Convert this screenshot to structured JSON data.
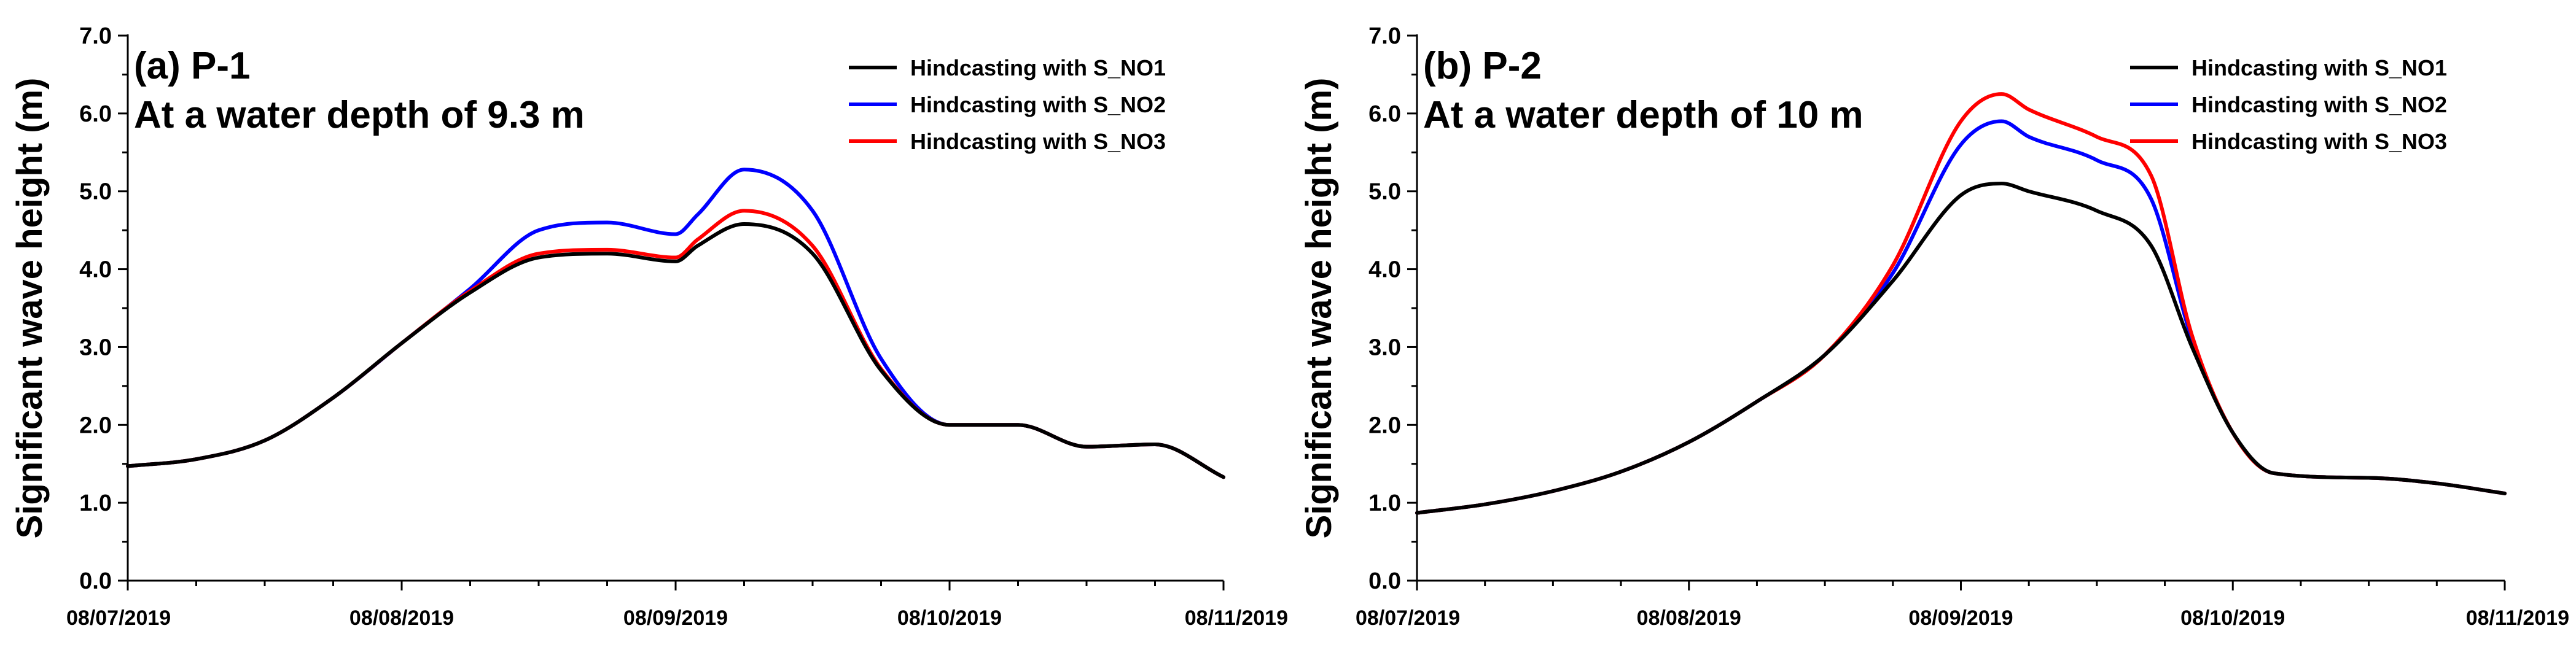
{
  "chart_data": [
    {
      "type": "line",
      "panel_label": "(a) P-1",
      "subtitle": "At a water depth of 9.3 m",
      "ylabel": "Significant wave height (m)",
      "xlabel": "",
      "ylim": [
        0,
        7
      ],
      "yticks": [
        "0.0",
        "1.0",
        "2.0",
        "3.0",
        "4.0",
        "5.0",
        "6.0",
        "7.0"
      ],
      "xlim": [
        0,
        4
      ],
      "xticks": [
        "08/07/2019",
        "08/08/2019",
        "08/09/2019",
        "08/10/2019",
        "08/11/2019"
      ],
      "x_unit": "days since 08/07/2019 00:00",
      "legend_position": "top-right",
      "series": [
        {
          "name": "Hindcasting with S_NO1",
          "color": "#000000",
          "x": [
            0,
            0.25,
            0.5,
            0.75,
            1.0,
            1.25,
            1.5,
            1.75,
            2.0,
            2.08,
            2.25,
            2.5,
            2.75,
            3.0,
            3.25,
            3.5,
            3.75,
            4.0
          ],
          "y": [
            1.47,
            1.56,
            1.8,
            2.35,
            3.05,
            3.7,
            4.15,
            4.2,
            4.1,
            4.3,
            4.58,
            4.2,
            2.7,
            2.0,
            2.0,
            1.72,
            1.75,
            1.33
          ]
        },
        {
          "name": "Hindcasting with S_NO2",
          "color": "#0000ff",
          "x": [
            0,
            0.25,
            0.5,
            0.75,
            1.0,
            1.25,
            1.5,
            1.75,
            2.0,
            2.08,
            2.25,
            2.5,
            2.75,
            3.0,
            3.25,
            3.5,
            3.75,
            4.0
          ],
          "y": [
            1.47,
            1.56,
            1.8,
            2.35,
            3.05,
            3.75,
            4.5,
            4.6,
            4.45,
            4.7,
            5.28,
            4.75,
            2.85,
            2.0,
            2.0,
            1.72,
            1.75,
            1.33
          ]
        },
        {
          "name": "Hindcasting with S_NO3",
          "color": "#ff0000",
          "x": [
            0,
            0.25,
            0.5,
            0.75,
            1.0,
            1.25,
            1.5,
            1.75,
            2.0,
            2.08,
            2.25,
            2.5,
            2.75,
            3.0,
            3.25,
            3.5,
            3.75,
            4.0
          ],
          "y": [
            1.47,
            1.56,
            1.8,
            2.35,
            3.05,
            3.72,
            4.2,
            4.25,
            4.15,
            4.38,
            4.75,
            4.3,
            2.72,
            2.0,
            2.0,
            1.72,
            1.75,
            1.33
          ]
        }
      ]
    },
    {
      "type": "line",
      "panel_label": "(b) P-2",
      "subtitle": "At a water depth of 10 m",
      "ylabel": "Significant wave height (m)",
      "xlabel": "",
      "ylim": [
        0,
        7
      ],
      "yticks": [
        "0.0",
        "1.0",
        "2.0",
        "3.0",
        "4.0",
        "5.0",
        "6.0",
        "7.0"
      ],
      "xlim": [
        0,
        4
      ],
      "xticks": [
        "08/07/2019",
        "08/08/2019",
        "08/09/2019",
        "08/10/2019",
        "08/11/2019"
      ],
      "x_unit": "days since 08/07/2019 00:00",
      "legend_position": "top-right",
      "series": [
        {
          "name": "Hindcasting with S_NO1",
          "color": "#000000",
          "x": [
            0,
            0.25,
            0.5,
            0.75,
            1.0,
            1.25,
            1.5,
            1.75,
            2.0,
            2.15,
            2.25,
            2.5,
            2.7,
            2.85,
            3.0,
            3.15,
            3.5,
            3.75,
            4.0
          ],
          "y": [
            0.87,
            0.98,
            1.15,
            1.4,
            1.78,
            2.3,
            2.9,
            3.85,
            4.95,
            5.1,
            5.0,
            4.75,
            4.3,
            3.0,
            1.9,
            1.38,
            1.32,
            1.25,
            1.12
          ]
        },
        {
          "name": "Hindcasting with S_NO2",
          "color": "#0000ff",
          "x": [
            0,
            0.25,
            0.5,
            0.75,
            1.0,
            1.25,
            1.5,
            1.75,
            2.0,
            2.15,
            2.25,
            2.5,
            2.7,
            2.85,
            3.0,
            3.15,
            3.5,
            3.75,
            4.0
          ],
          "y": [
            0.87,
            0.98,
            1.15,
            1.4,
            1.78,
            2.3,
            2.9,
            3.95,
            5.6,
            5.9,
            5.7,
            5.4,
            4.9,
            3.1,
            1.9,
            1.38,
            1.32,
            1.25,
            1.12
          ]
        },
        {
          "name": "Hindcasting with S_NO3",
          "color": "#ff0000",
          "x": [
            0,
            0.25,
            0.5,
            0.75,
            1.0,
            1.25,
            1.5,
            1.75,
            2.0,
            2.15,
            2.25,
            2.5,
            2.7,
            2.85,
            3.0,
            3.15,
            3.5,
            3.75,
            4.0
          ],
          "y": [
            0.87,
            0.98,
            1.15,
            1.4,
            1.78,
            2.3,
            2.9,
            4.05,
            5.9,
            6.25,
            6.05,
            5.7,
            5.2,
            3.15,
            1.9,
            1.38,
            1.32,
            1.25,
            1.12
          ]
        }
      ]
    }
  ]
}
